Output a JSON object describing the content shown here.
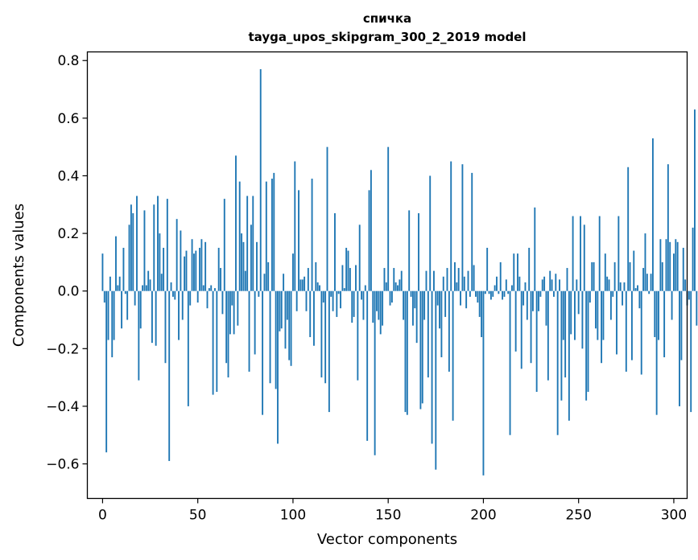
{
  "chart_data": {
    "type": "bar",
    "title": "спичка",
    "subtitle": "tayga_upos_skipgram_300_2_2019 model",
    "xlabel": "Vector components",
    "ylabel": "Components values",
    "xlim": [
      -8,
      307
    ],
    "ylim": [
      -0.72,
      0.83
    ],
    "x_ticks": [
      0,
      50,
      100,
      150,
      200,
      250,
      300
    ],
    "x_tick_labels": [
      "0",
      "50",
      "100",
      "150",
      "200",
      "250",
      "300"
    ],
    "y_ticks": [
      -0.6,
      -0.4,
      -0.2,
      0.0,
      0.2,
      0.4,
      0.6,
      0.8
    ],
    "y_tick_labels": [
      "−0.6",
      "−0.4",
      "−0.2",
      "0.0",
      "0.2",
      "0.4",
      "0.6",
      "0.8"
    ],
    "bar_color": "#1f77b4",
    "grid": false,
    "legend": "none",
    "x_start": 0,
    "values": [
      0.13,
      -0.04,
      -0.56,
      -0.17,
      0.05,
      -0.23,
      -0.17,
      0.19,
      0.02,
      0.05,
      -0.13,
      0.15,
      -0.01,
      -0.1,
      0.23,
      0.3,
      0.27,
      -0.05,
      0.33,
      -0.31,
      -0.13,
      0.02,
      0.28,
      0.02,
      0.07,
      0.04,
      -0.18,
      0.3,
      -0.19,
      0.33,
      0.2,
      0.06,
      0.15,
      -0.25,
      0.32,
      -0.59,
      0.03,
      -0.02,
      -0.03,
      0.25,
      -0.17,
      0.21,
      -0.1,
      0.12,
      0.14,
      -0.4,
      -0.05,
      0.18,
      0.13,
      0.14,
      -0.04,
      0.15,
      0.18,
      0.02,
      0.17,
      -0.06,
      0.01,
      0.02,
      -0.36,
      0.01,
      -0.35,
      0.15,
      0.08,
      -0.08,
      0.32,
      -0.25,
      -0.3,
      -0.15,
      -0.05,
      -0.15,
      0.47,
      -0.12,
      0.38,
      0.2,
      0.17,
      0.07,
      0.33,
      -0.28,
      0.23,
      0.33,
      -0.22,
      0.17,
      -0.02,
      0.77,
      -0.43,
      0.06,
      0.38,
      0.1,
      -0.32,
      0.39,
      0.41,
      -0.34,
      -0.53,
      -0.14,
      -0.13,
      0.06,
      -0.2,
      -0.1,
      -0.24,
      -0.26,
      0.13,
      0.45,
      -0.07,
      0.35,
      0.04,
      0.04,
      0.05,
      -0.07,
      0.08,
      -0.16,
      0.39,
      -0.19,
      0.1,
      0.03,
      0.02,
      -0.3,
      -0.04,
      -0.32,
      0.5,
      -0.42,
      -0.02,
      -0.07,
      0.27,
      -0.09,
      -0.01,
      -0.06,
      0.09,
      0.01,
      0.15,
      0.14,
      0.08,
      -0.11,
      -0.09,
      0.09,
      -0.31,
      0.23,
      -0.03,
      -0.1,
      0.02,
      -0.52,
      0.35,
      0.42,
      -0.11,
      -0.57,
      -0.07,
      -0.1,
      -0.15,
      -0.12,
      0.08,
      0.03,
      0.5,
      -0.05,
      -0.04,
      0.08,
      0.03,
      0.02,
      0.04,
      0.07,
      -0.1,
      -0.42,
      -0.43,
      0.28,
      -0.02,
      -0.12,
      -0.06,
      -0.18,
      0.27,
      -0.41,
      -0.39,
      -0.1,
      0.07,
      -0.3,
      0.4,
      -0.53,
      0.07,
      -0.62,
      -0.05,
      -0.13,
      -0.23,
      0.05,
      -0.09,
      0.08,
      -0.28,
      0.45,
      -0.45,
      0.1,
      0.03,
      0.08,
      -0.05,
      0.44,
      0.05,
      -0.06,
      0.07,
      -0.02,
      0.41,
      0.09,
      -0.02,
      -0.04,
      -0.09,
      -0.16,
      -0.64,
      -0.01,
      0.15,
      -0.01,
      -0.03,
      -0.02,
      0.02,
      0.05,
      -0.01,
      0.1,
      -0.03,
      -0.02,
      0.04,
      -0.01,
      -0.5,
      0.02,
      0.13,
      -0.21,
      0.13,
      0.05,
      -0.27,
      -0.05,
      0.03,
      -0.1,
      0.15,
      -0.25,
      -0.07,
      0.29,
      -0.35,
      -0.07,
      -0.02,
      0.04,
      0.05,
      -0.12,
      -0.31,
      0.07,
      0.04,
      -0.02,
      0.06,
      -0.5,
      0.04,
      -0.38,
      -0.17,
      -0.3,
      0.08,
      -0.45,
      -0.15,
      0.26,
      -0.17,
      0.04,
      -0.08,
      0.26,
      -0.2,
      0.23,
      -0.38,
      -0.35,
      -0.04,
      0.1,
      0.1,
      -0.13,
      -0.17,
      0.26,
      -0.25,
      -0.17,
      0.13,
      0.05,
      0.04,
      -0.1,
      -0.02,
      0.1,
      -0.22,
      0.26,
      0.03,
      -0.05,
      0.03,
      -0.28,
      0.43,
      0.1,
      -0.24,
      0.14,
      0.01,
      0.02,
      -0.06,
      -0.29,
      0.08,
      0.2,
      0.06,
      -0.01,
      0.06,
      0.53,
      -0.16,
      -0.43,
      -0.17,
      0.18,
      0.1,
      -0.23,
      0.18,
      0.44,
      0.17,
      -0.1,
      0.13,
      0.18,
      0.17,
      -0.4,
      -0.24,
      0.15,
      0.04,
      -0.05,
      -0.03,
      -0.42,
      0.22,
      0.63,
      -0.12
    ]
  }
}
